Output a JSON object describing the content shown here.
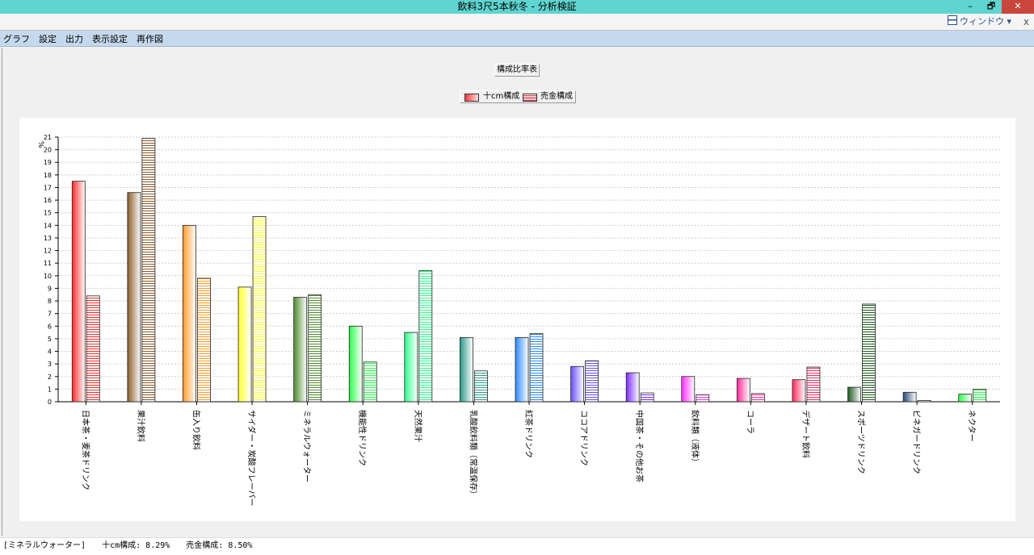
{
  "window": {
    "title": "飲料3尺5本秋冬 - 分析検証",
    "minimize": "–",
    "restore": "🗗",
    "close": "✕",
    "window_menu": "ウィンドウ ▾",
    "subbar_close": "x"
  },
  "menu": [
    "グラフ",
    "設定",
    "出力",
    "表示設定",
    "再作図"
  ],
  "chart_title_button": "構成比率表",
  "legend": [
    "十cm構成",
    "売金構成"
  ],
  "status": {
    "selected": "[ミネラルウォーター]",
    "series1": "十cm構成: 8.29%",
    "series2": "売金構成: 8.50%"
  },
  "chart_data": {
    "type": "bar",
    "title": "構成比率表",
    "ylabel": "%",
    "ylim": [
      0,
      21
    ],
    "yticks": [
      0,
      1,
      2,
      3,
      4,
      5,
      6,
      7,
      8,
      9,
      10,
      11,
      12,
      13,
      14,
      15,
      16,
      17,
      18,
      19,
      20,
      21
    ],
    "grid": true,
    "legend_position": "top-center",
    "categories": [
      "日本茶・麦茶ドリンク",
      "果汁飲料",
      "缶入り飲料",
      "サイダー・炭酸フレーバー",
      "ミネラルウォーター",
      "機能性ドリンク",
      "天然果汁",
      "乳酸飲料類（常温保存）",
      "紅茶ドリンク",
      "ココアドリンク",
      "中国茶・その他お茶",
      "飲料類（液体）",
      "コーラ",
      "デザート飲料",
      "スポーツドリンク",
      "ビネガードリンク",
      "ネクター"
    ],
    "colors": [
      "#ff2a2a",
      "#8b5a2b",
      "#ff9a2a",
      "#ffff2a",
      "#4f8a2f",
      "#2aff4a",
      "#2aff8a",
      "#2a9a8a",
      "#2a8aff",
      "#6a4aff",
      "#7a2aff",
      "#ff2aff",
      "#ff2a9a",
      "#ff2a5a",
      "#1f5a1f",
      "#2a4a7a",
      "#2aff4a"
    ],
    "series": [
      {
        "name": "十cm構成",
        "values": [
          17.5,
          16.6,
          14.0,
          9.1,
          8.29,
          6.0,
          5.5,
          5.1,
          5.1,
          2.8,
          2.3,
          2.0,
          1.85,
          1.75,
          1.15,
          0.75,
          0.6
        ]
      },
      {
        "name": "売金構成",
        "values": [
          8.4,
          20.9,
          9.8,
          14.7,
          8.5,
          3.15,
          10.4,
          2.45,
          5.4,
          3.25,
          0.7,
          0.55,
          0.65,
          2.75,
          7.75,
          0.1,
          1.0
        ]
      }
    ]
  }
}
